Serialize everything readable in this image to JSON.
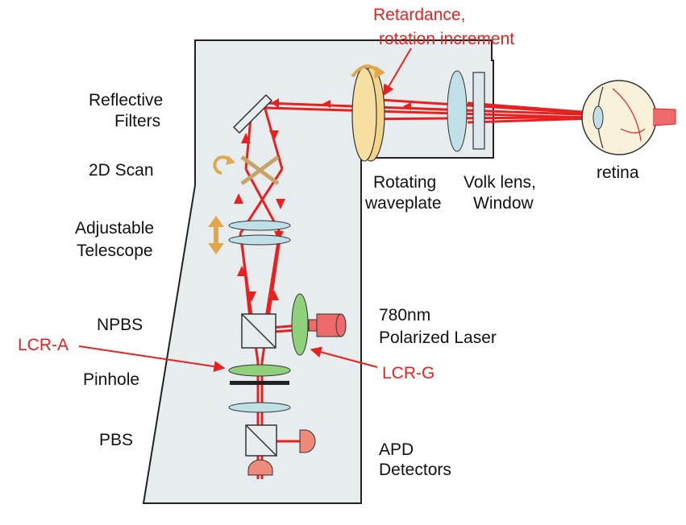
{
  "labels": {
    "retardance_line1": "Retardance,",
    "retardance_line2": "rotation increment",
    "reflective_line1": "Reflective",
    "reflective_line2": "Filters",
    "scan": "2D Scan",
    "adjustable_line1": "Adjustable",
    "adjustable_line2": "Telescope",
    "npbs": "NPBS",
    "lcr_a": "LCR-A",
    "pinhole": "Pinhole",
    "pbs": "PBS",
    "rotating_line1": "Rotating",
    "rotating_line2": "waveplate",
    "volk_line1": "Volk lens,",
    "volk_line2": "Window",
    "retina": "retina",
    "laser_line1": "780nm",
    "laser_line2": "Polarized Laser",
    "lcr_g": "LCR-G",
    "apd_line1": "APD",
    "apd_line2": "Detectors"
  },
  "colors": {
    "beam": "#e8201f",
    "housing_fill": "#e7ecef",
    "label_red": "#e8201f",
    "waveplate": "#f2d58a",
    "lens": "#bfe0e6",
    "lcr": "#8fd07a",
    "laser": "#ee6a6a",
    "arrow_orange": "#e0a84a"
  }
}
